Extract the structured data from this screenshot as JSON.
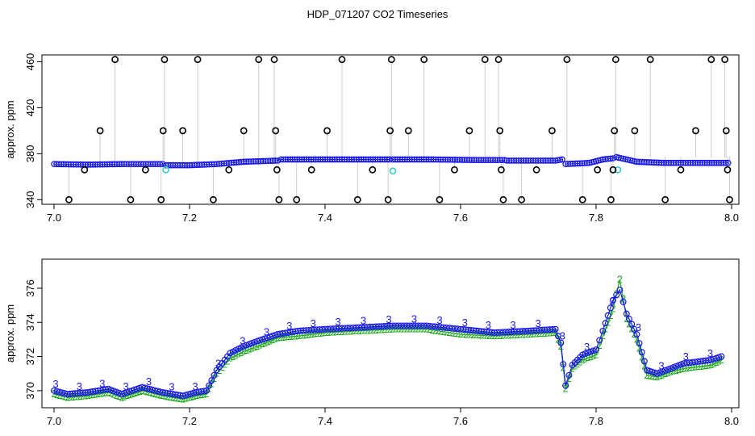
{
  "title": "HDP_071207  CO2 Timeseries",
  "colors": {
    "outlier": "#000000",
    "trace": "#9a9a9a",
    "main_series": "#1a1ae6",
    "highlight": "#33cccc",
    "label2": "#22aa22",
    "label3": "#1a1ae6"
  },
  "chart_data": [
    {
      "type": "scatter",
      "title": "",
      "xlabel": "",
      "ylabel": "approx. ppm",
      "xlim": [
        7.0,
        8.0
      ],
      "ylim": [
        336,
        466
      ],
      "xticks": [
        "7.0",
        "7.2",
        "7.4",
        "7.6",
        "7.8",
        "8.0"
      ],
      "yticks": [
        "340",
        "380",
        "420",
        "460"
      ],
      "grid": false,
      "legend": "none",
      "baseline_segments": [
        {
          "x": [
            7.0,
            7.05,
            7.1,
            7.16
          ],
          "y": [
            371,
            370.5,
            371,
            371
          ]
        },
        {
          "x": [
            7.165,
            7.2,
            7.24,
            7.28,
            7.33
          ],
          "y": [
            370,
            370,
            371,
            373,
            374
          ]
        },
        {
          "x": [
            7.335,
            7.4,
            7.45,
            7.495
          ],
          "y": [
            375,
            375,
            375,
            375
          ]
        },
        {
          "x": [
            7.5,
            7.56,
            7.62,
            7.665
          ],
          "y": [
            375,
            375,
            374.5,
            374.5
          ]
        },
        {
          "x": [
            7.668,
            7.7,
            7.74,
            7.75
          ],
          "y": [
            374,
            374,
            374,
            375
          ]
        },
        {
          "x": [
            7.755,
            7.79,
            7.81,
            7.825
          ],
          "y": [
            371,
            372,
            375,
            376
          ]
        },
        {
          "x": [
            7.83,
            7.86,
            7.9,
            7.95,
            7.995
          ],
          "y": [
            377,
            373,
            372,
            372,
            372
          ]
        }
      ],
      "cyan_points": [
        {
          "x": 7.165,
          "y": 366
        },
        {
          "x": 7.5,
          "y": 365
        },
        {
          "x": 7.832,
          "y": 366
        }
      ],
      "outliers": [
        {
          "x": 7.022,
          "y": 340
        },
        {
          "x": 7.045,
          "y": 366
        },
        {
          "x": 7.068,
          "y": 400
        },
        {
          "x": 7.09,
          "y": 462
        },
        {
          "x": 7.113,
          "y": 340
        },
        {
          "x": 7.135,
          "y": 366
        },
        {
          "x": 7.158,
          "y": 340
        },
        {
          "x": 7.161,
          "y": 400
        },
        {
          "x": 7.163,
          "y": 462
        },
        {
          "x": 7.19,
          "y": 400
        },
        {
          "x": 7.212,
          "y": 462
        },
        {
          "x": 7.235,
          "y": 340
        },
        {
          "x": 7.258,
          "y": 366
        },
        {
          "x": 7.28,
          "y": 400
        },
        {
          "x": 7.302,
          "y": 462
        },
        {
          "x": 7.325,
          "y": 462
        },
        {
          "x": 7.327,
          "y": 400
        },
        {
          "x": 7.329,
          "y": 366
        },
        {
          "x": 7.332,
          "y": 340
        },
        {
          "x": 7.358,
          "y": 340
        },
        {
          "x": 7.38,
          "y": 366
        },
        {
          "x": 7.403,
          "y": 400
        },
        {
          "x": 7.425,
          "y": 462
        },
        {
          "x": 7.448,
          "y": 340
        },
        {
          "x": 7.47,
          "y": 366
        },
        {
          "x": 7.493,
          "y": 340
        },
        {
          "x": 7.496,
          "y": 400
        },
        {
          "x": 7.498,
          "y": 462
        },
        {
          "x": 7.523,
          "y": 400
        },
        {
          "x": 7.546,
          "y": 462
        },
        {
          "x": 7.569,
          "y": 340
        },
        {
          "x": 7.591,
          "y": 366
        },
        {
          "x": 7.613,
          "y": 400
        },
        {
          "x": 7.636,
          "y": 462
        },
        {
          "x": 7.656,
          "y": 462
        },
        {
          "x": 7.658,
          "y": 400
        },
        {
          "x": 7.66,
          "y": 366
        },
        {
          "x": 7.663,
          "y": 340
        },
        {
          "x": 7.69,
          "y": 340
        },
        {
          "x": 7.712,
          "y": 366
        },
        {
          "x": 7.735,
          "y": 400
        },
        {
          "x": 7.757,
          "y": 462
        },
        {
          "x": 7.78,
          "y": 340
        },
        {
          "x": 7.802,
          "y": 366
        },
        {
          "x": 7.822,
          "y": 340
        },
        {
          "x": 7.825,
          "y": 366
        },
        {
          "x": 7.827,
          "y": 400
        },
        {
          "x": 7.829,
          "y": 462
        },
        {
          "x": 7.857,
          "y": 400
        },
        {
          "x": 7.88,
          "y": 462
        },
        {
          "x": 7.902,
          "y": 340
        },
        {
          "x": 7.925,
          "y": 366
        },
        {
          "x": 7.947,
          "y": 400
        },
        {
          "x": 7.97,
          "y": 462
        },
        {
          "x": 7.99,
          "y": 462
        },
        {
          "x": 7.992,
          "y": 400
        },
        {
          "x": 7.994,
          "y": 366
        },
        {
          "x": 7.997,
          "y": 340
        }
      ]
    },
    {
      "type": "line",
      "title": "",
      "xlabel": "",
      "ylabel": "approx. ppm",
      "xlim": [
        7.0,
        8.0
      ],
      "ylim": [
        369.0,
        377.7
      ],
      "xticks": [
        "7.0",
        "7.2",
        "7.4",
        "7.6",
        "7.8",
        "8.0"
      ],
      "yticks": [
        "370",
        "372",
        "374",
        "376"
      ],
      "grid": false,
      "legend": "none",
      "series": [
        {
          "marker": "3",
          "x": [
            7.0,
            7.02,
            7.05,
            7.08,
            7.1,
            7.13,
            7.16,
            7.19,
            7.21,
            7.225,
            7.24,
            7.26,
            7.28,
            7.3,
            7.33,
            7.36,
            7.4,
            7.45,
            7.5,
            7.55,
            7.6,
            7.65,
            7.7,
            7.74,
            7.748,
            7.755,
            7.765,
            7.78,
            7.8,
            7.81,
            7.825,
            7.835,
            7.845,
            7.86,
            7.875,
            7.89,
            7.91,
            7.93,
            7.95,
            7.97,
            7.985
          ],
          "y": [
            370.0,
            369.8,
            369.9,
            370.1,
            369.8,
            370.2,
            369.9,
            369.7,
            369.9,
            370.0,
            371.2,
            372.2,
            372.6,
            372.9,
            373.3,
            373.5,
            373.6,
            373.7,
            373.8,
            373.8,
            373.6,
            373.4,
            373.5,
            373.6,
            372.8,
            370.3,
            371.5,
            372.1,
            372.4,
            373.5,
            375.3,
            375.9,
            374.5,
            373.3,
            371.2,
            371.0,
            371.3,
            371.6,
            371.7,
            371.8,
            372.0
          ]
        },
        {
          "marker": "2",
          "x": [
            7.0,
            7.02,
            7.05,
            7.08,
            7.1,
            7.13,
            7.16,
            7.19,
            7.21,
            7.225,
            7.24,
            7.26,
            7.28,
            7.3,
            7.33,
            7.36,
            7.4,
            7.45,
            7.5,
            7.55,
            7.6,
            7.65,
            7.7,
            7.74,
            7.748,
            7.755,
            7.765,
            7.78,
            7.8,
            7.81,
            7.825,
            7.835,
            7.845,
            7.86,
            7.875,
            7.89,
            7.91,
            7.93,
            7.95,
            7.97,
            7.985
          ],
          "y": [
            369.8,
            369.6,
            369.7,
            369.9,
            369.6,
            370.0,
            369.7,
            369.5,
            369.7,
            369.8,
            371.0,
            371.9,
            372.3,
            372.6,
            373.1,
            373.2,
            373.4,
            373.5,
            373.6,
            373.6,
            373.3,
            373.2,
            373.3,
            373.4,
            372.6,
            370.1,
            371.3,
            371.8,
            372.1,
            373.2,
            374.8,
            376.5,
            374.2,
            373.0,
            370.9,
            370.8,
            371.1,
            371.3,
            371.4,
            371.5,
            371.8
          ]
        }
      ]
    }
  ]
}
